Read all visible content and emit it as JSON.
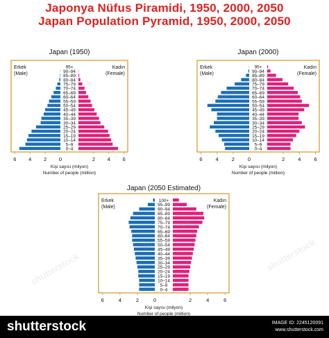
{
  "titles": {
    "line1": "Japonya Nüfus Piramidi, 1950, 2000, 2050",
    "line2": "Japan Population Pyramid, 1950, 2000, 2050"
  },
  "footer": {
    "brand": "shutterstock",
    "image_id": "IMAGE ID: 2245120091",
    "site": "www.shutterstock.com"
  },
  "watermark": "shutterstock",
  "colors": {
    "male": "#1a6db5",
    "female": "#e0207a",
    "frame": "#d9a640",
    "title": "#e02020"
  },
  "chart_data": [
    {
      "type": "bar",
      "title": "Japan (1950)",
      "male_label": "Erkek\n(Male)",
      "female_label": "Kadın\n(Female)",
      "xlabel_tr": "Kişi sayısı (milyon)",
      "xlabel_en": "Number of people (million)",
      "categories": [
        "0–4",
        "5–9",
        "10–14",
        "15–19",
        "20–24",
        "25–29",
        "30–34",
        "35–39",
        "40–44",
        "45–49",
        "50–54",
        "55–59",
        "60–64",
        "65–69",
        "70–74",
        "75–79",
        "80–84",
        "85–89",
        "90–94",
        "95+"
      ],
      "xticks": [
        "6",
        "4",
        "2",
        "0",
        "2",
        "4",
        "6"
      ],
      "xlim": [
        -6.5,
        6.5
      ],
      "series": [
        {
          "name": "Erkek (Male)",
          "values": [
            5.4,
            4.6,
            4.4,
            4.2,
            3.8,
            3.2,
            2.6,
            2.5,
            2.2,
            2.0,
            1.7,
            1.5,
            1.2,
            0.9,
            0.6,
            0.4,
            0.15,
            0.05,
            0.02,
            0.0
          ]
        },
        {
          "name": "Kadın (Female)",
          "values": [
            5.2,
            4.5,
            4.3,
            4.1,
            3.9,
            3.4,
            2.9,
            2.7,
            2.4,
            2.1,
            1.8,
            1.6,
            1.3,
            1.0,
            0.8,
            0.5,
            0.25,
            0.1,
            0.03,
            0.0
          ]
        }
      ]
    },
    {
      "type": "bar",
      "title": "Japan (2000)",
      "male_label": "Erkek\n(Male)",
      "female_label": "Kadın\n(Female)",
      "xlabel_tr": "Kişi sayısı (milyon)",
      "xlabel_en": "Number of people (million)",
      "categories": [
        "0–4",
        "5–9",
        "10–14",
        "15–19",
        "20–24",
        "25–29",
        "30–34",
        "35–39",
        "40–44",
        "45–49",
        "50–54",
        "55–59",
        "60–64",
        "65–69",
        "70–74",
        "75–79",
        "80–84",
        "85–89",
        "90–94",
        "95+"
      ],
      "xticks": [
        "6",
        "4",
        "2",
        "0",
        "2",
        "4",
        "6"
      ],
      "xlim": [
        -6.5,
        6.5
      ],
      "series": [
        {
          "name": "Erkek (Male)",
          "values": [
            3.0,
            3.1,
            3.4,
            3.8,
            4.2,
            4.9,
            4.4,
            4.0,
            4.0,
            4.7,
            5.2,
            4.2,
            3.9,
            3.5,
            2.8,
            1.8,
            1.0,
            0.4,
            0.1,
            0.02
          ]
        },
        {
          "name": "Kadın (Female)",
          "values": [
            2.9,
            2.9,
            3.2,
            3.6,
            4.0,
            4.7,
            4.3,
            3.9,
            3.9,
            4.6,
            5.2,
            4.3,
            4.1,
            3.8,
            3.3,
            2.6,
            1.9,
            1.1,
            0.4,
            0.1
          ]
        }
      ]
    },
    {
      "type": "bar",
      "title": "Japan (2050 Estimated)",
      "male_label": "Erkek\n(Male)",
      "female_label": "Kadın\n(Female)",
      "xlabel_tr": "Kişi sayısı (milyon)",
      "xlabel_en": "Number of people (million)",
      "categories": [
        "0–4",
        "5–9",
        "10–14",
        "15–19",
        "20–24",
        "25–29",
        "30–34",
        "35–39",
        "40–44",
        "45–49",
        "50–54",
        "55–59",
        "60–64",
        "65–69",
        "70–74",
        "75–79",
        "80–84",
        "85–89",
        "90–94",
        "95–99",
        "100+"
      ],
      "xticks": [
        "6",
        "4",
        "2",
        "0",
        "2",
        "4",
        "6"
      ],
      "xlim": [
        -6.5,
        6.5
      ],
      "series": [
        {
          "name": "Erkek (Male)",
          "values": [
            1.8,
            1.8,
            1.8,
            1.9,
            1.9,
            2.0,
            2.1,
            2.2,
            2.3,
            2.4,
            2.5,
            2.6,
            2.6,
            2.7,
            2.9,
            3.0,
            2.8,
            2.5,
            1.8,
            0.8,
            0.2
          ]
        },
        {
          "name": "Kadın (Female)",
          "values": [
            1.8,
            1.8,
            1.8,
            1.8,
            1.9,
            2.0,
            2.1,
            2.2,
            2.3,
            2.4,
            2.5,
            2.6,
            2.7,
            2.8,
            3.0,
            3.4,
            3.6,
            3.5,
            2.7,
            1.6,
            0.7
          ]
        }
      ]
    }
  ]
}
